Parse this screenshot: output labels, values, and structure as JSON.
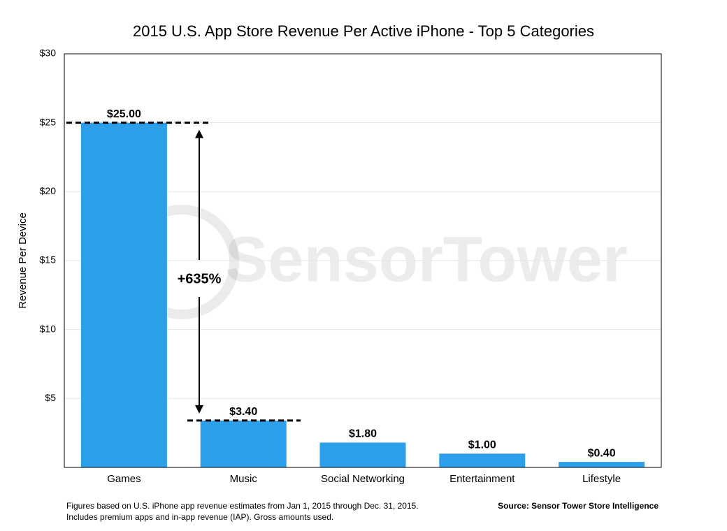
{
  "chart_data": {
    "type": "bar",
    "title": "2015 U.S. App Store Revenue Per Active iPhone - Top 5 Categories",
    "y_label": "Revenue Per Device",
    "categories": [
      "Games",
      "Music",
      "Social Networking",
      "Entertainment",
      "Lifestyle"
    ],
    "values": [
      25,
      3.4,
      1.8,
      1,
      0.4
    ],
    "value_labels": [
      "$25.00",
      "$3.40",
      "$1.80",
      "$1.00",
      "$0.40"
    ],
    "color": "#2b9fea",
    "ylim": [
      0,
      30
    ],
    "yticks": [
      {
        "value": 5,
        "label": "$5"
      },
      {
        "value": 10,
        "label": "$10"
      },
      {
        "value": 15,
        "label": "$15"
      },
      {
        "value": 20,
        "label": "$20"
      },
      {
        "value": 25,
        "label": "$25"
      },
      {
        "value": 30,
        "label": "$30"
      }
    ],
    "grid": true,
    "annotation": "+635%",
    "watermark": "SensorTower",
    "footnote": [
      "Figures based on U.S. iPhone app revenue estimates from Jan 1, 2015 through Dec. 31, 2015.",
      "Includes premium apps and in-app revenue (IAP). Gross amounts used."
    ],
    "source": "Source: Sensor Tower Store Intelligence"
  }
}
